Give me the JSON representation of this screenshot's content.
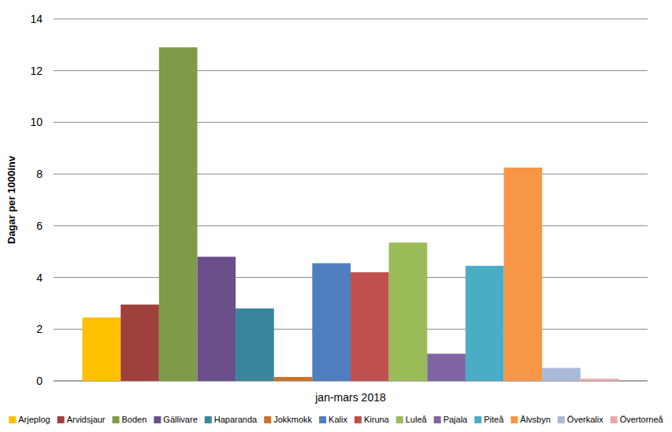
{
  "chart_data": {
    "type": "bar",
    "y_label": "Dagar per 1000inv",
    "categories": [
      "jan-mars 2018"
    ],
    "series": [
      {
        "name": "Arjeplog",
        "color": "#ffc000",
        "values": [
          2.45
        ]
      },
      {
        "name": "Arvidsjaur",
        "color": "#a0403c",
        "values": [
          2.95
        ]
      },
      {
        "name": "Boden",
        "color": "#7f9a48",
        "values": [
          12.9
        ]
      },
      {
        "name": "Gällivare",
        "color": "#6a4f8b",
        "values": [
          4.8
        ]
      },
      {
        "name": "Haparanda",
        "color": "#37869b",
        "values": [
          2.8
        ]
      },
      {
        "name": "Jokkmokk",
        "color": "#c8732a",
        "values": [
          0.15
        ]
      },
      {
        "name": "Kalix",
        "color": "#4f7fbe",
        "values": [
          4.55
        ]
      },
      {
        "name": "Kiruna",
        "color": "#c0504d",
        "values": [
          4.2
        ]
      },
      {
        "name": "Luleå",
        "color": "#9bbb59",
        "values": [
          5.35
        ]
      },
      {
        "name": "Pajala",
        "color": "#8064a2",
        "values": [
          1.05
        ]
      },
      {
        "name": "Piteå",
        "color": "#4bacc6",
        "values": [
          4.45
        ]
      },
      {
        "name": "Älvsbyn",
        "color": "#f79646",
        "values": [
          8.25
        ]
      },
      {
        "name": "Överkalix",
        "color": "#a9b8d8",
        "values": [
          0.5
        ]
      },
      {
        "name": "Övertorneå",
        "color": "#e6a9a8",
        "values": [
          0.08
        ]
      }
    ],
    "ylim": [
      0,
      14
    ],
    "yticks": [
      0,
      2,
      4,
      6,
      8,
      10,
      12,
      14
    ],
    "grid": true,
    "legend": "bottom"
  }
}
